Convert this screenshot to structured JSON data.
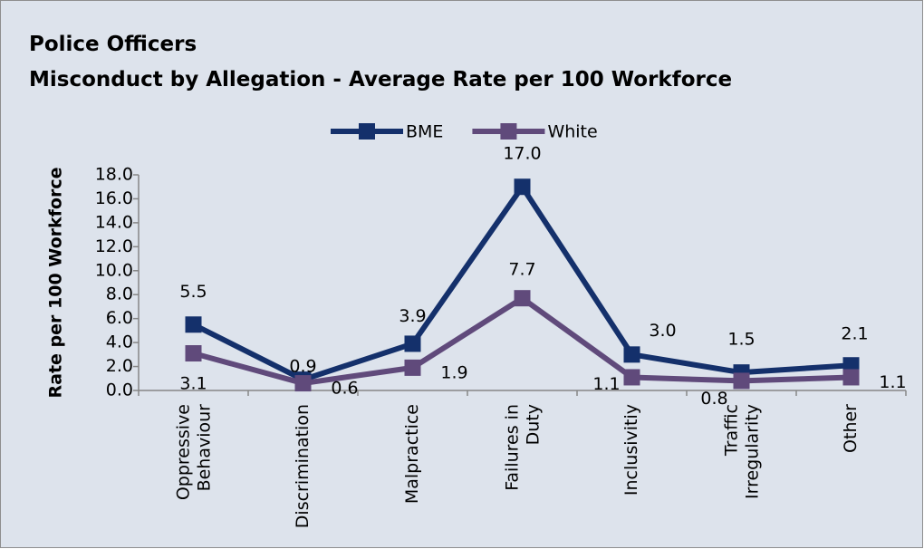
{
  "chart_data": {
    "type": "line",
    "title": "Police Officers",
    "subtitle": "Misconduct by Allegation - Average Rate per 100 Workforce",
    "y_label": "Rate per 100 Workforce",
    "categories": [
      "Oppressive Behaviour",
      "Discrimination",
      "Malpractice",
      "Failures in Duty",
      "Inclusivitiy",
      "Traffic Irregularity",
      "Other"
    ],
    "series": [
      {
        "name": "BME",
        "color": "#14306b",
        "values": [
          5.5,
          0.9,
          3.9,
          17.0,
          3.0,
          1.5,
          2.1
        ],
        "value_labels": [
          "5.5",
          "0.9",
          "3.9",
          "17.0",
          "3.0",
          "1.5",
          "2.1"
        ]
      },
      {
        "name": "White",
        "color": "#604a7b",
        "values": [
          3.1,
          0.6,
          1.9,
          7.7,
          1.1,
          0.8,
          1.1
        ],
        "value_labels": [
          "3.1",
          "0.6",
          "1.9",
          "7.7",
          "1.1",
          "0.8",
          "1.1"
        ]
      }
    ],
    "ylim": [
      0,
      18
    ],
    "yticks": [
      {
        "value": 0,
        "label": "0.0"
      },
      {
        "value": 2,
        "label": "2.0"
      },
      {
        "value": 4,
        "label": "4.0"
      },
      {
        "value": 6,
        "label": "6.0"
      },
      {
        "value": 8,
        "label": "8.0"
      },
      {
        "value": 10,
        "label": "10.0"
      },
      {
        "value": 12,
        "label": "12.0"
      },
      {
        "value": 14,
        "label": "14.0"
      },
      {
        "value": 16,
        "label": "16.0"
      },
      {
        "value": 18,
        "label": "18.0"
      }
    ],
    "legend": "top",
    "grid": false
  }
}
